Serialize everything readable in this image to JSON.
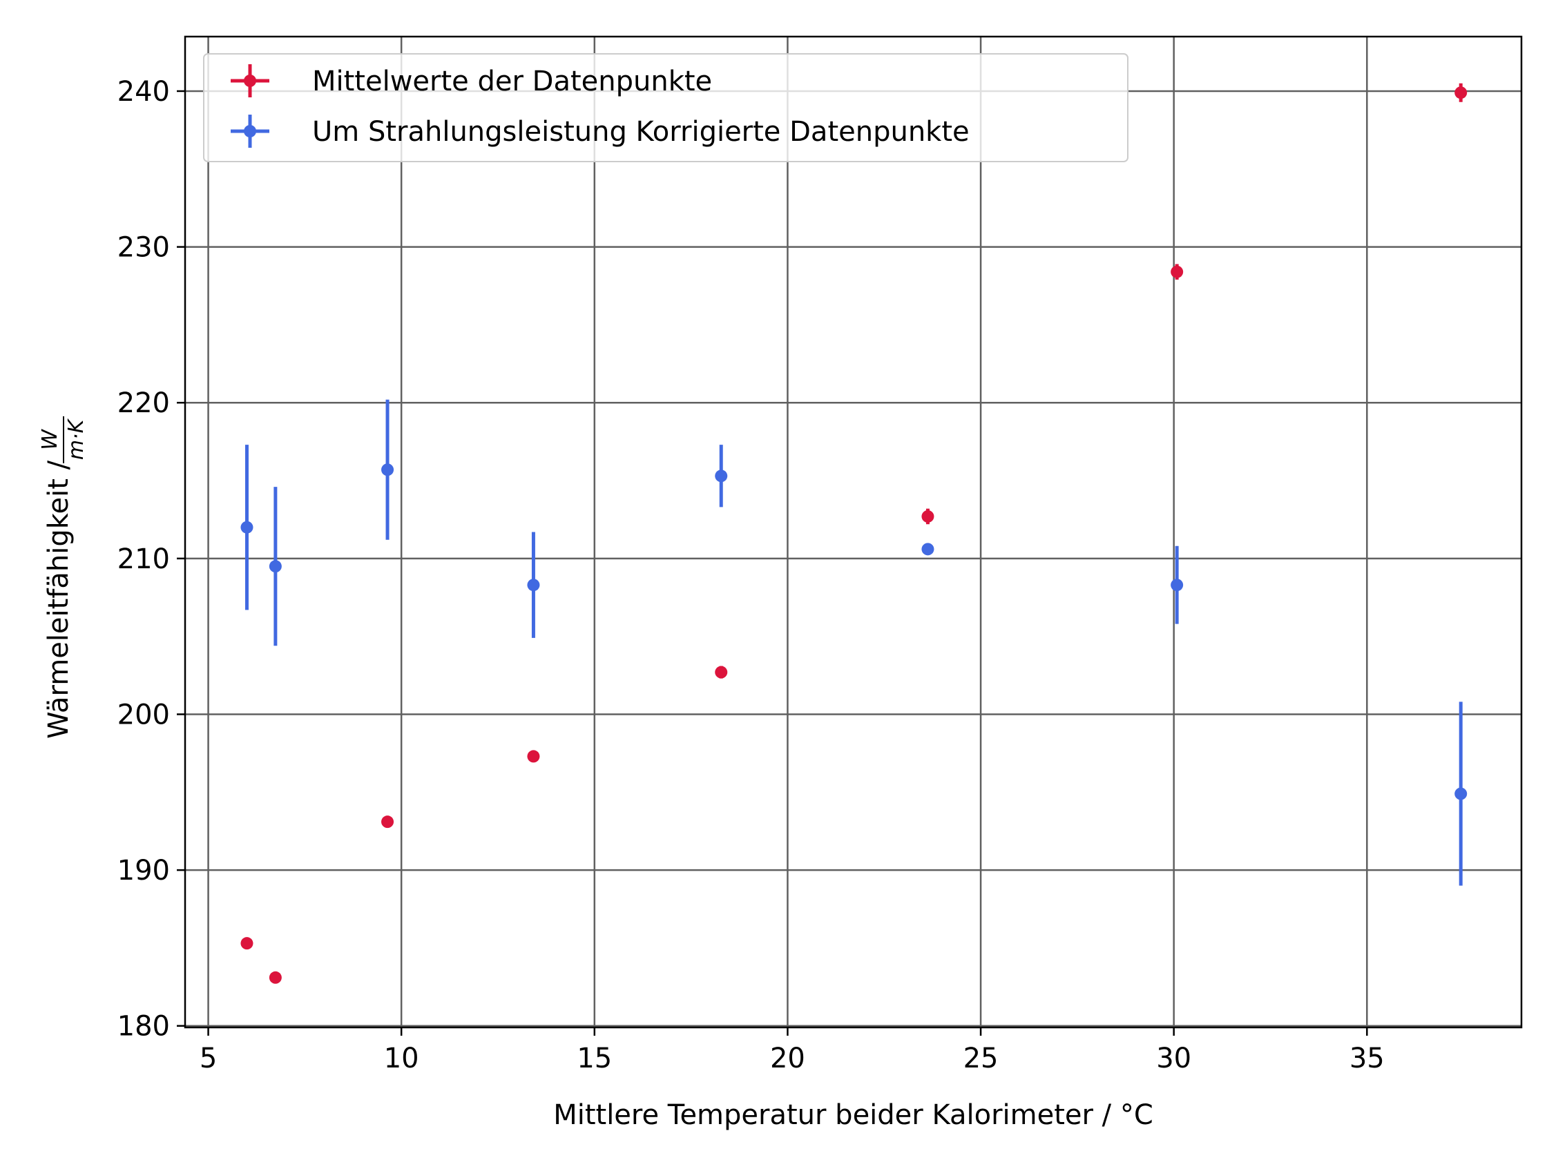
{
  "chart_data": {
    "type": "scatter",
    "xlabel": "Mittlere Temperatur beider Kalorimeter / °C",
    "ylabel": "Wärmeleitfähigkeit / ",
    "ylabel_unit_num": "W",
    "ylabel_unit_den": "m·K",
    "xlim": [
      4.4,
      39.0
    ],
    "ylim": [
      179.9,
      243.5
    ],
    "x_ticks": [
      5,
      10,
      15,
      20,
      25,
      30,
      35
    ],
    "y_ticks": [
      180,
      190,
      200,
      210,
      220,
      230,
      240
    ],
    "grid": true,
    "legend_position": "top-left",
    "series": [
      {
        "name": "Mittelwerte der Datenpunkte",
        "color": "#dc143c",
        "points": [
          {
            "x": 6.0,
            "y": 185.3,
            "yerr": 0.2
          },
          {
            "x": 6.74,
            "y": 183.1,
            "yerr": 0.2
          },
          {
            "x": 9.64,
            "y": 193.1,
            "yerr": 0.2
          },
          {
            "x": 13.42,
            "y": 197.3,
            "yerr": 0.35
          },
          {
            "x": 18.28,
            "y": 202.7,
            "yerr": 0.4
          },
          {
            "x": 23.63,
            "y": 212.7,
            "yerr": 0.5
          },
          {
            "x": 30.08,
            "y": 228.4,
            "yerr": 0.5
          },
          {
            "x": 37.43,
            "y": 239.9,
            "yerr": 0.6
          }
        ]
      },
      {
        "name": "Um Strahlungsleistung Korrigierte Datenpunkte",
        "color": "#4169e1",
        "points": [
          {
            "x": 6.0,
            "y": 212.0,
            "yerr": 5.3
          },
          {
            "x": 6.74,
            "y": 209.5,
            "yerr": 5.1
          },
          {
            "x": 9.64,
            "y": 215.7,
            "yerr": 4.5
          },
          {
            "x": 13.42,
            "y": 208.3,
            "yerr": 3.4
          },
          {
            "x": 18.28,
            "y": 215.3,
            "yerr": 2.0
          },
          {
            "x": 23.63,
            "y": 210.6,
            "yerr": 0.2
          },
          {
            "x": 30.08,
            "y": 208.3,
            "yerr": 2.5
          },
          {
            "x": 37.43,
            "y": 194.9,
            "yerr": 5.9
          }
        ]
      }
    ]
  }
}
